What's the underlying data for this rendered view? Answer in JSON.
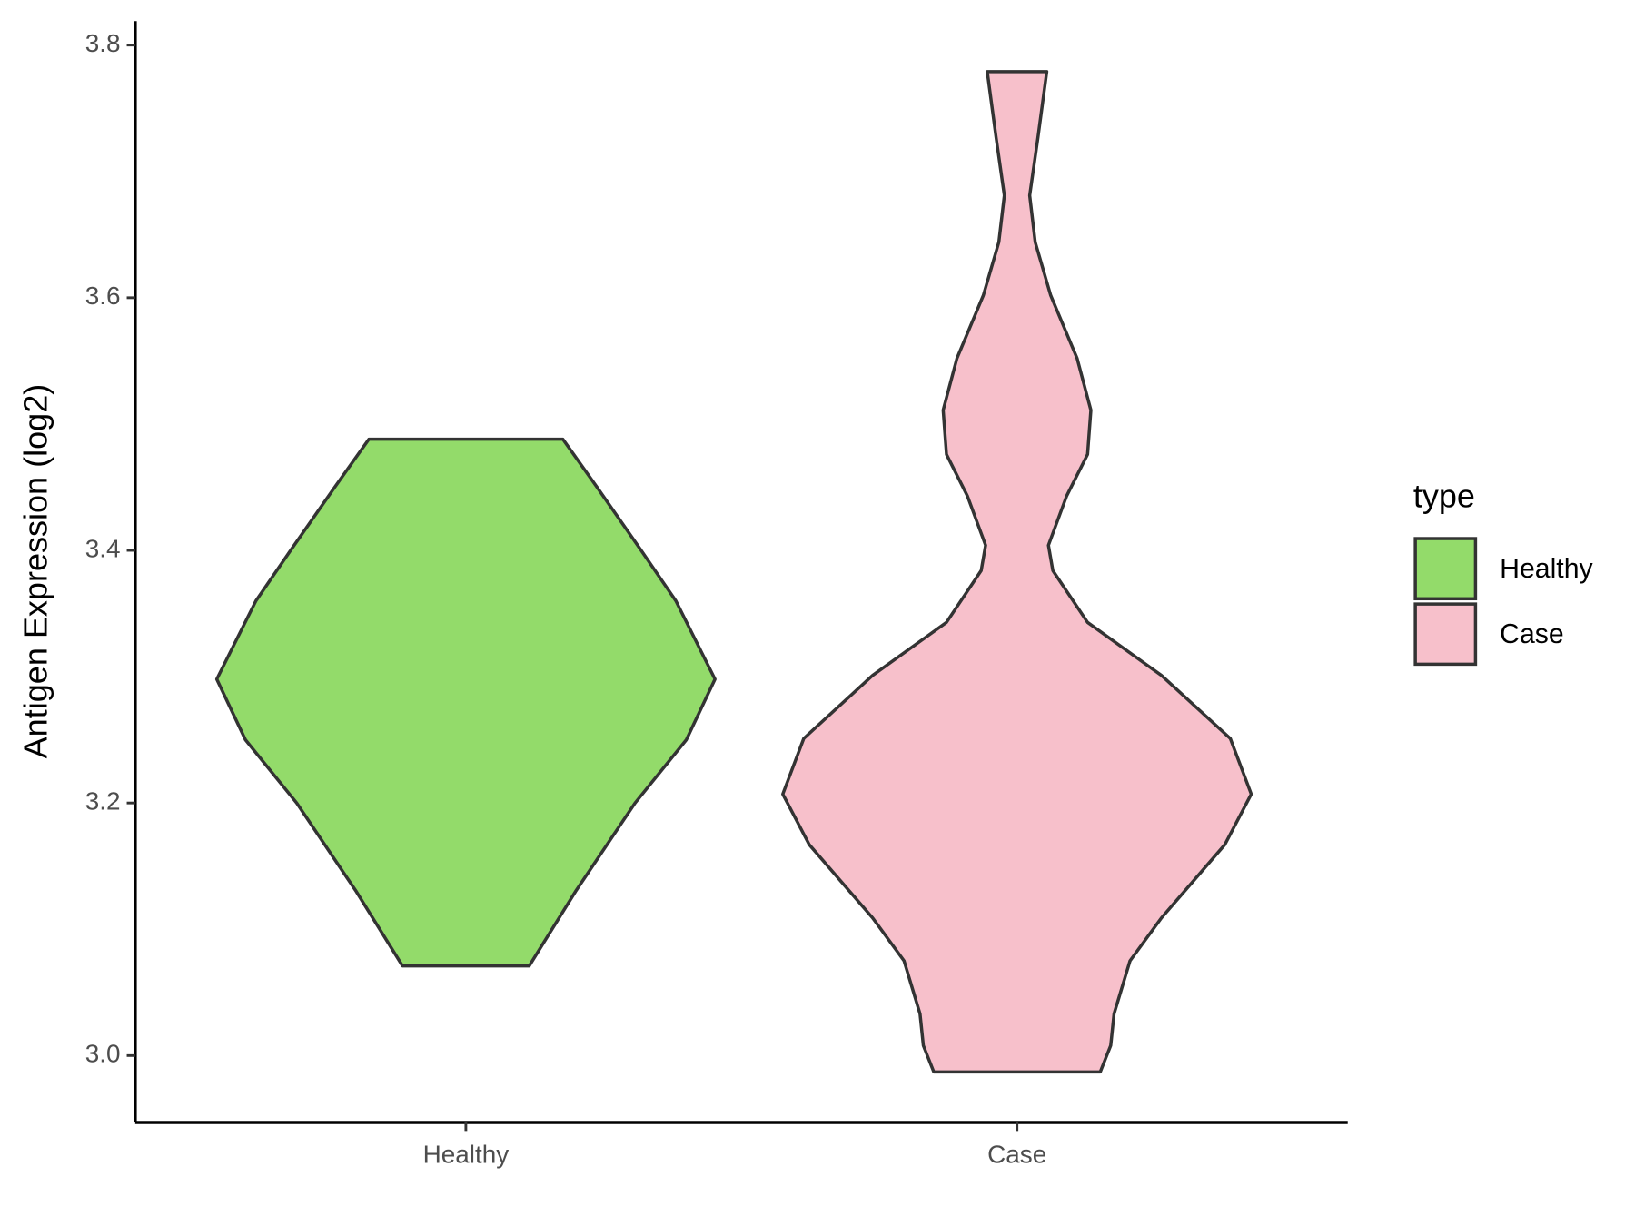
{
  "chart_data": {
    "type": "violin",
    "y_label": "Antigen Expression (log2)",
    "categories": [
      "Healthy",
      "Case"
    ],
    "legend_title": "type",
    "legend": "right",
    "series": [
      {
        "name": "Healthy",
        "color": "#93db6a",
        "y": [
          3.071,
          3.13,
          3.2,
          3.25,
          3.298,
          3.36,
          3.4,
          3.45,
          3.488
        ],
        "half_width": [
          0.115,
          0.199,
          0.307,
          0.4,
          0.452,
          0.381,
          0.318,
          0.238,
          0.176
        ]
      },
      {
        "name": "Case",
        "color": "#f7c0cb",
        "y": [
          2.987,
          3.008,
          3.033,
          3.075,
          3.109,
          3.167,
          3.207,
          3.251,
          3.301,
          3.343,
          3.384,
          3.404,
          3.443,
          3.476,
          3.511,
          3.552,
          3.602,
          3.644,
          3.681,
          3.727,
          3.779
        ],
        "half_width": [
          0.151,
          0.17,
          0.176,
          0.205,
          0.262,
          0.377,
          0.425,
          0.387,
          0.262,
          0.128,
          0.065,
          0.057,
          0.09,
          0.128,
          0.134,
          0.109,
          0.061,
          0.033,
          0.023,
          0.038,
          0.054
        ]
      }
    ],
    "ylim": [
      2.947,
      3.819
    ],
    "yticks": [
      {
        "value": 3,
        "label": "3.0"
      },
      3.2,
      3.4,
      3.6,
      3.8
    ]
  }
}
